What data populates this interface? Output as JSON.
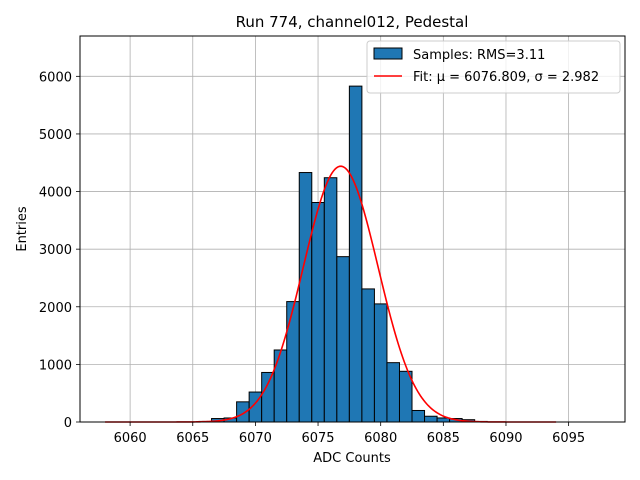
{
  "chart_data": {
    "type": "bar",
    "title": "Run 774, channel012, Pedestal",
    "xlabel": "ADC Counts",
    "ylabel": "Entries",
    "xlim": [
      6056,
      6099.5
    ],
    "ylim": [
      0,
      6700
    ],
    "x_ticks": [
      6060,
      6065,
      6070,
      6075,
      6080,
      6085,
      6090,
      6095
    ],
    "y_ticks": [
      0,
      1000,
      2000,
      3000,
      4000,
      5000,
      6000
    ],
    "grid": true,
    "legend_position": "top-right",
    "bin_width": 1,
    "bins": [
      {
        "x": 6066,
        "value": 10
      },
      {
        "x": 6067,
        "value": 60
      },
      {
        "x": 6068,
        "value": 70
      },
      {
        "x": 6069,
        "value": 350
      },
      {
        "x": 6070,
        "value": 520
      },
      {
        "x": 6071,
        "value": 860
      },
      {
        "x": 6072,
        "value": 1250
      },
      {
        "x": 6073,
        "value": 2090
      },
      {
        "x": 6074,
        "value": 4330
      },
      {
        "x": 6075,
        "value": 3810
      },
      {
        "x": 6076,
        "value": 4240
      },
      {
        "x": 6077,
        "value": 2870
      },
      {
        "x": 6078,
        "value": 5830
      },
      {
        "x": 6079,
        "value": 2310
      },
      {
        "x": 6080,
        "value": 2050
      },
      {
        "x": 6081,
        "value": 1030
      },
      {
        "x": 6082,
        "value": 880
      },
      {
        "x": 6083,
        "value": 200
      },
      {
        "x": 6084,
        "value": 100
      },
      {
        "x": 6085,
        "value": 70
      },
      {
        "x": 6086,
        "value": 60
      },
      {
        "x": 6087,
        "value": 40
      },
      {
        "x": 6088,
        "value": 10
      }
    ],
    "fit": {
      "mu": 6076.809,
      "sigma": 2.982,
      "amplitude": 4440,
      "x_range": [
        6058,
        6094
      ]
    },
    "legend": [
      {
        "label": "Samples: RMS=3.11",
        "kind": "patch",
        "color": "#1f77b4"
      },
      {
        "label": "Fit: μ = 6076.809, σ = 2.982",
        "kind": "line",
        "color": "#ff0000"
      }
    ],
    "colors": {
      "bar_fill": "#1f77b4",
      "bar_edge": "#000000",
      "fit_line": "#ff0000",
      "grid": "#b0b0b0"
    }
  }
}
